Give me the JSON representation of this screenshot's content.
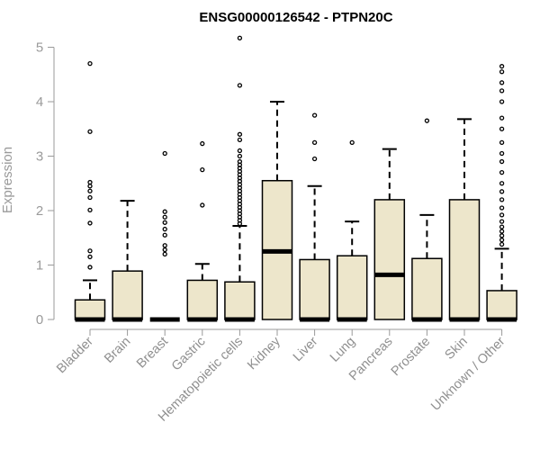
{
  "chart_data": {
    "type": "box",
    "title": "ENSG00000126542 - PTPN20C",
    "xlabel": "",
    "ylabel": "Expression",
    "ylim": [
      0,
      5.2
    ],
    "yticks": [
      0,
      1,
      2,
      3,
      4,
      5
    ],
    "grid": false,
    "box_fill": "#ede6cb",
    "categories": [
      "Bladder",
      "Brain",
      "Breast",
      "Gastric",
      "Hematopoietic cells",
      "Kidney",
      "Liver",
      "Lung",
      "Pancreas",
      "Prostate",
      "Skin",
      "Unknown / Other"
    ],
    "boxes": [
      {
        "q1": 0,
        "median": 0,
        "q3": 0.36,
        "whisker_low": 0,
        "whisker_high": 0.72,
        "outliers": [
          0.96,
          1.15,
          1.26,
          1.77,
          2.01,
          2.24,
          2.36,
          2.45,
          2.52,
          3.45,
          4.7
        ]
      },
      {
        "q1": 0,
        "median": 0,
        "q3": 0.89,
        "whisker_low": 0,
        "whisker_high": 2.18,
        "outliers": []
      },
      {
        "q1": 0,
        "median": 0,
        "q3": 0,
        "whisker_low": 0,
        "whisker_high": 0,
        "outliers": [
          1.2,
          1.28,
          1.36,
          1.55,
          1.66,
          1.78,
          1.88,
          1.98,
          3.05
        ]
      },
      {
        "q1": 0,
        "median": 0,
        "q3": 0.72,
        "whisker_low": 0,
        "whisker_high": 1.02,
        "outliers": [
          2.1,
          2.75,
          3.23
        ]
      },
      {
        "q1": 0,
        "median": 0,
        "q3": 0.69,
        "whisker_low": 0,
        "whisker_high": 1.72,
        "outliers": [
          1.76,
          1.82,
          1.88,
          1.94,
          2.0,
          2.06,
          2.12,
          2.18,
          2.24,
          2.3,
          2.36,
          2.42,
          2.48,
          2.54,
          2.6,
          2.66,
          2.72,
          2.78,
          2.84,
          2.9,
          3.0,
          3.1,
          3.3,
          3.4,
          4.3,
          5.17
        ]
      },
      {
        "q1": 0,
        "median": 1.25,
        "q3": 2.55,
        "whisker_low": 0,
        "whisker_high": 4.0,
        "outliers": []
      },
      {
        "q1": 0,
        "median": 0,
        "q3": 1.1,
        "whisker_low": 0,
        "whisker_high": 2.45,
        "outliers": [
          2.95,
          3.25,
          3.75
        ]
      },
      {
        "q1": 0,
        "median": 0,
        "q3": 1.17,
        "whisker_low": 0,
        "whisker_high": 1.8,
        "outliers": [
          3.25
        ]
      },
      {
        "q1": 0,
        "median": 0.82,
        "q3": 2.2,
        "whisker_low": 0,
        "whisker_high": 3.13,
        "outliers": []
      },
      {
        "q1": 0,
        "median": 0,
        "q3": 1.12,
        "whisker_low": 0,
        "whisker_high": 1.92,
        "outliers": [
          3.65
        ]
      },
      {
        "q1": 0,
        "median": 0,
        "q3": 2.2,
        "whisker_low": 0,
        "whisker_high": 3.68,
        "outliers": []
      },
      {
        "q1": 0,
        "median": 0,
        "q3": 0.53,
        "whisker_low": 0,
        "whisker_high": 1.3,
        "outliers": [
          1.38,
          1.46,
          1.54,
          1.62,
          1.7,
          1.8,
          1.92,
          2.05,
          2.2,
          2.35,
          2.5,
          2.7,
          2.9,
          3.05,
          3.25,
          3.5,
          3.7,
          4.0,
          4.2,
          4.35,
          4.55,
          4.65
        ]
      }
    ]
  }
}
